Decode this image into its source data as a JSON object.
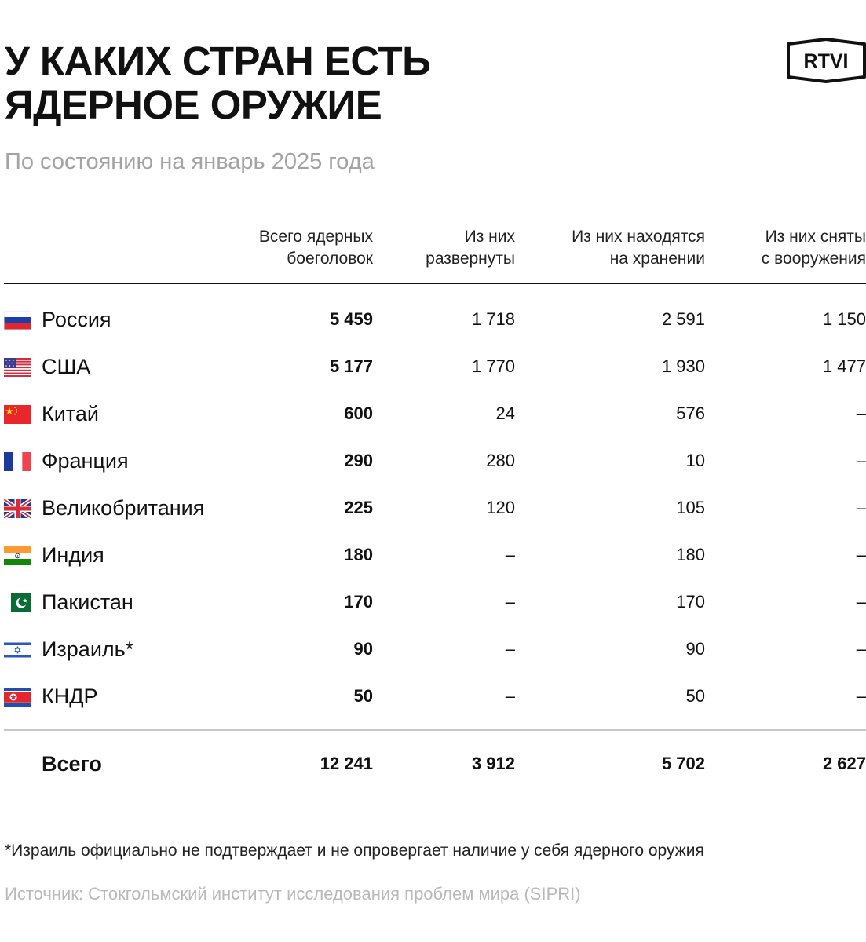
{
  "title_lines": [
    "У КАКИХ СТРАН ЕСТЬ",
    "ЯДЕРНОЕ ОРУЖИЕ"
  ],
  "subtitle": "По состоянию на январь 2025 года",
  "logo_text": "RTVI",
  "chart_data": {
    "type": "table",
    "columns": [
      {
        "lines": [
          "Всего ядерных",
          "боеголовок"
        ]
      },
      {
        "lines": [
          "Из них",
          "развернуты"
        ]
      },
      {
        "lines": [
          "Из них находятся",
          "на хранении"
        ]
      },
      {
        "lines": [
          "Из них сняты",
          "с вооружения"
        ]
      }
    ],
    "rows": [
      {
        "country": "Россия",
        "flag": "russia-flag-icon",
        "values": [
          "5 459",
          "1 718",
          "2 591",
          "1 150"
        ]
      },
      {
        "country": "США",
        "flag": "usa-flag-icon",
        "values": [
          "5 177",
          "1 770",
          "1 930",
          "1 477"
        ]
      },
      {
        "country": "Китай",
        "flag": "china-flag-icon",
        "values": [
          "600",
          "24",
          "576",
          "–"
        ]
      },
      {
        "country": "Франция",
        "flag": "france-flag-icon",
        "values": [
          "290",
          "280",
          "10",
          "–"
        ]
      },
      {
        "country": "Великобритания",
        "flag": "uk-flag-icon",
        "values": [
          "225",
          "120",
          "105",
          "–"
        ]
      },
      {
        "country": "Индия",
        "flag": "india-flag-icon",
        "values": [
          "180",
          "–",
          "180",
          "–"
        ]
      },
      {
        "country": "Пакистан",
        "flag": "pakistan-flag-icon",
        "values": [
          "170",
          "–",
          "170",
          "–"
        ]
      },
      {
        "country": "Израиль*",
        "flag": "israel-flag-icon",
        "values": [
          "90",
          "–",
          "90",
          "–"
        ]
      },
      {
        "country": "КНДР",
        "flag": "north-korea-flag-icon",
        "values": [
          "50",
          "–",
          "50",
          "–"
        ]
      }
    ],
    "total": {
      "label": "Всего",
      "values": [
        "12 241",
        "3 912",
        "5 702",
        "2 627"
      ]
    }
  },
  "footnote": "*Израиль официально не подтверждает и не опровергает наличие у себя ядерного оружия",
  "source": "Источник: Стокгольмский институт исследования проблем мира (SIPRI)",
  "colors": {
    "text": "#111111",
    "subtitle": "#a3a3a3",
    "source": "#b9b9b9",
    "divider": "#c8c8c8"
  }
}
